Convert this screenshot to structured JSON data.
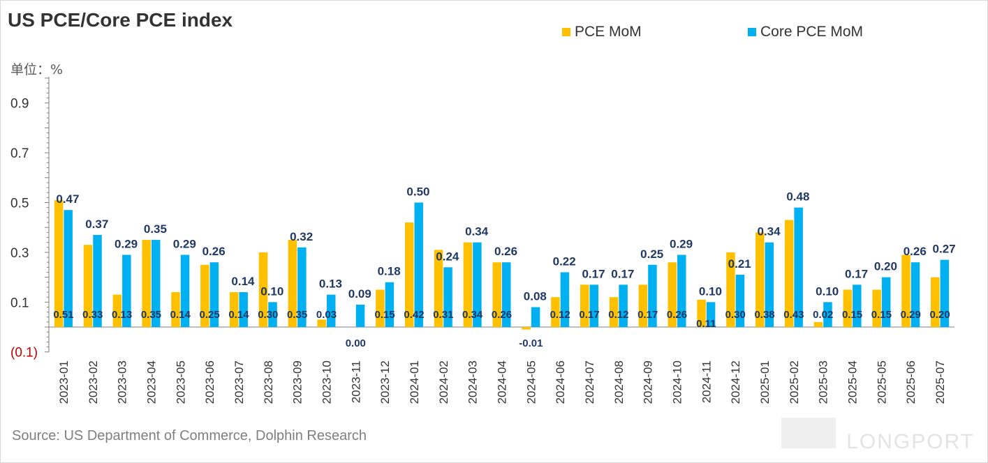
{
  "title": "US PCE/Core PCE index",
  "unit_label": "单位：%",
  "source": "Source: US Department of Commerce, Dolphin Research",
  "watermark": "LONGPORT",
  "legend": [
    {
      "label": "PCE MoM",
      "color": "#FFC000"
    },
    {
      "label": "Core PCE MoM",
      "color": "#00B0F0"
    }
  ],
  "chart_data": {
    "type": "bar",
    "categories": [
      "2023-01",
      "2023-02",
      "2023-03",
      "2023-04",
      "2023-05",
      "2023-06",
      "2023-07",
      "2023-08",
      "2023-09",
      "2023-10",
      "2023-11",
      "2023-12",
      "2024-01",
      "2024-02",
      "2024-03",
      "2024-04",
      "2024-05",
      "2024-06",
      "2024-07",
      "2024-08",
      "2024-09",
      "2024-10",
      "2024-11",
      "2024-12",
      "2025-01",
      "2025-02",
      "2025-03",
      "2025-04",
      "2025-05",
      "2025-06",
      "2025-07"
    ],
    "series": [
      {
        "name": "PCE MoM",
        "color": "#FFC000",
        "values": [
          0.51,
          0.33,
          0.13,
          0.35,
          0.14,
          0.25,
          0.14,
          0.3,
          0.35,
          0.03,
          0.0,
          0.15,
          0.42,
          0.31,
          0.34,
          0.26,
          -0.01,
          0.12,
          0.17,
          0.12,
          0.17,
          0.26,
          0.11,
          0.3,
          0.38,
          0.43,
          0.02,
          0.15,
          0.15,
          0.29,
          0.2
        ],
        "labels": [
          "0.51",
          "0.33",
          "0.13",
          "0.35",
          "0.14",
          "0.25",
          "0.14",
          "0.30",
          "0.35",
          "0.03",
          "0.00",
          "0.15",
          "0.42",
          "0.31",
          "0.34",
          "0.26",
          "-0.01",
          "0.12",
          "0.17",
          "0.12",
          "0.17",
          "0.26",
          "0.11",
          "0.30",
          "0.38",
          "0.43",
          "0.02",
          "0.15",
          "0.15",
          "0.29",
          "0.20"
        ]
      },
      {
        "name": "Core PCE MoM",
        "color": "#00B0F0",
        "values": [
          0.47,
          0.37,
          0.29,
          0.35,
          0.29,
          0.26,
          0.14,
          0.1,
          0.32,
          0.13,
          0.09,
          0.18,
          0.5,
          0.24,
          0.34,
          0.26,
          0.08,
          0.22,
          0.17,
          0.17,
          0.25,
          0.29,
          0.1,
          0.21,
          0.34,
          0.48,
          0.1,
          0.17,
          0.2,
          0.26,
          0.27
        ],
        "labels": [
          "0.47",
          "0.37",
          "0.29",
          "0.35",
          "0.29",
          "0.26",
          "0.14",
          "0.10",
          "0.32",
          "0.13",
          "0.09",
          "0.18",
          "0.50",
          "0.24",
          "0.34",
          "0.26",
          "0.08",
          "0.22",
          "0.17",
          "0.17",
          "0.25",
          "0.29",
          "0.10",
          "0.21",
          "0.34",
          "0.48",
          "0.10",
          "0.17",
          "0.20",
          "0.26",
          "0.27"
        ]
      }
    ],
    "yticks": [
      {
        "value": 0.9,
        "label": "0.9"
      },
      {
        "value": 0.7,
        "label": "0.7"
      },
      {
        "value": 0.5,
        "label": "0.5"
      },
      {
        "value": 0.3,
        "label": "0.3"
      },
      {
        "value": 0.1,
        "label": "0.1"
      },
      {
        "value": -0.1,
        "label": "(0.1)",
        "color": "#C00000"
      }
    ],
    "ylim": [
      -0.1,
      1.0
    ],
    "xlabel": "",
    "ylabel": "",
    "grid": false,
    "legend_position": "top"
  }
}
